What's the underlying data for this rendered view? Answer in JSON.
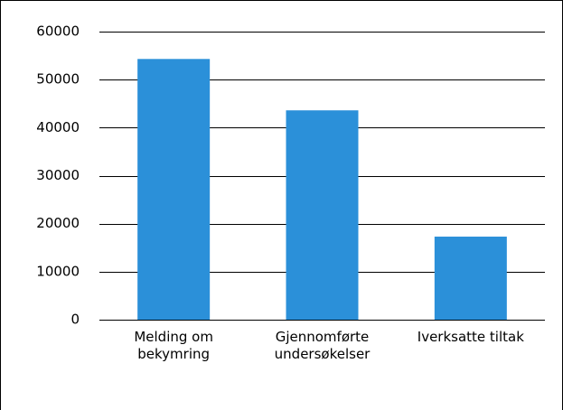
{
  "chart_data": {
    "type": "bar",
    "categories": [
      "Melding om bekymring",
      "Gjennomførte undersøkelser",
      "Iverksatte tiltak"
    ],
    "values": [
      54300,
      43600,
      17300
    ],
    "color": "#2b90d9",
    "ylim": [
      0,
      60000
    ],
    "yticks": [
      0,
      10000,
      20000,
      30000,
      40000,
      50000,
      60000
    ],
    "grid": true
  }
}
